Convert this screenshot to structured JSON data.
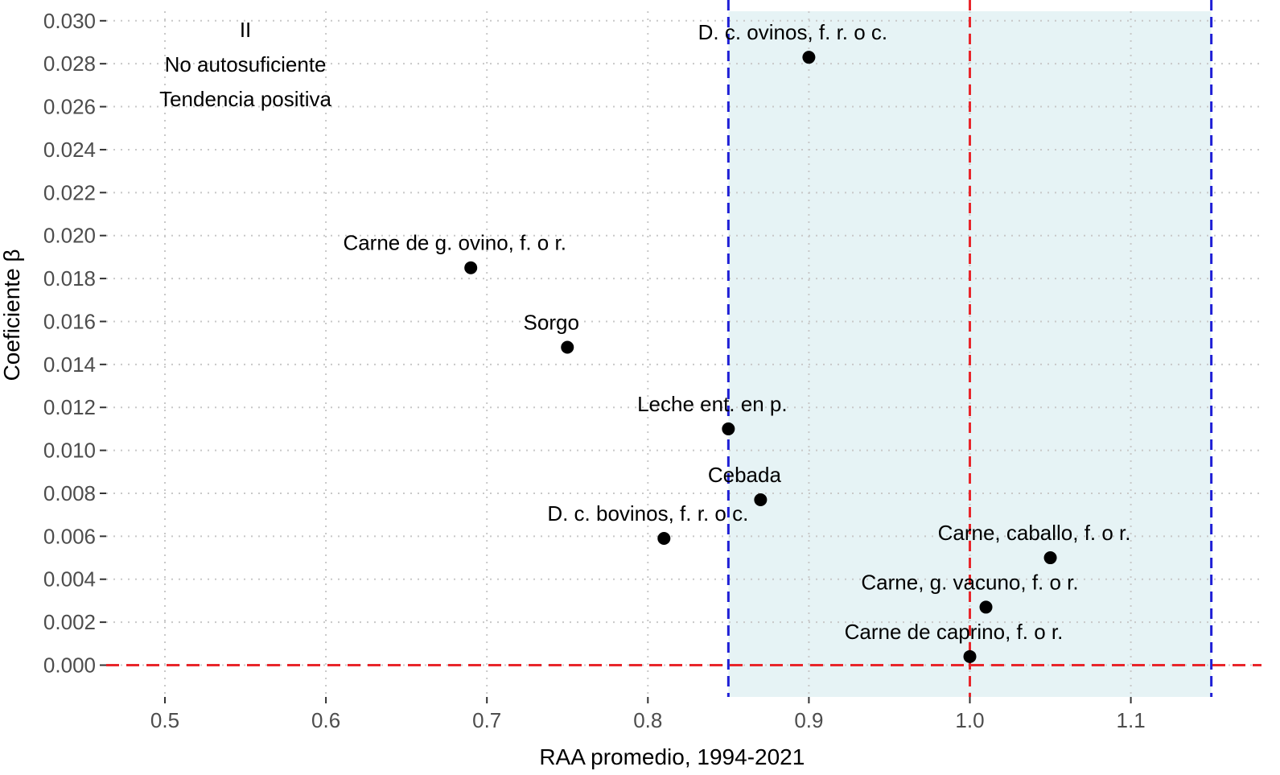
{
  "chart_data": {
    "type": "scatter",
    "title": "",
    "xlabel": "RAA promedio, 1994-2021",
    "ylabel": "Coeficiente β",
    "xlim": [
      0.47,
      1.18
    ],
    "ylim": [
      -0.0015,
      0.0315
    ],
    "x_ticks": [
      0.5,
      0.6,
      0.7,
      0.8,
      0.9,
      1.0,
      1.1
    ],
    "x_tick_labels": [
      "0.5",
      "0.6",
      "0.7",
      "0.8",
      "0.9",
      "1.0",
      "1.1"
    ],
    "y_ticks": [
      0.0,
      0.002,
      0.004,
      0.006,
      0.008,
      0.01,
      0.012,
      0.014,
      0.016,
      0.018,
      0.02,
      0.022,
      0.024,
      0.026,
      0.028,
      0.03
    ],
    "y_tick_labels": [
      "0.000",
      "0.002",
      "0.004",
      "0.006",
      "0.008",
      "0.010",
      "0.012",
      "0.014",
      "0.016",
      "0.018",
      "0.020",
      "0.022",
      "0.024",
      "0.026",
      "0.028",
      "0.030"
    ],
    "grid": true,
    "shaded_region": {
      "x_from": 0.85,
      "x_to": 1.15,
      "color": "#e6f3f5"
    },
    "reference_lines": [
      {
        "orientation": "vertical",
        "value": 0.85,
        "color": "#1f1fd6",
        "style": "dashed"
      },
      {
        "orientation": "vertical",
        "value": 1.15,
        "color": "#1f1fd6",
        "style": "dashed"
      },
      {
        "orientation": "vertical",
        "value": 1.0,
        "color": "#e8262b",
        "style": "dashed"
      },
      {
        "orientation": "horizontal",
        "value": 0.0,
        "color": "#e8262b",
        "style": "dashed"
      }
    ],
    "points": [
      {
        "label": "D. c. ovinos, f. r. o c.",
        "x": 0.9,
        "y": 0.0283
      },
      {
        "label": "Carne de g. ovino, f. o r.",
        "x": 0.69,
        "y": 0.0185
      },
      {
        "label": "Sorgo",
        "x": 0.75,
        "y": 0.0148
      },
      {
        "label": "Leche ent. en p.",
        "x": 0.85,
        "y": 0.011
      },
      {
        "label": "Cebada",
        "x": 0.87,
        "y": 0.0077
      },
      {
        "label": "D. c. bovinos, f. r. o c.",
        "x": 0.81,
        "y": 0.0059
      },
      {
        "label": "Carne, caballo, f. o r.",
        "x": 1.05,
        "y": 0.005
      },
      {
        "label": "Carne, g. vacuno, f. o r.",
        "x": 1.01,
        "y": 0.0027
      },
      {
        "label": "Carne de caprino, f. o r.",
        "x": 1.0,
        "y": 0.0004
      }
    ],
    "annotation": {
      "lines": [
        "II",
        "No autosuficiente",
        "Tendencia positiva"
      ],
      "x": 0.55
    },
    "colors": {
      "point": "#000000",
      "grid": "#c8c8c8"
    }
  }
}
